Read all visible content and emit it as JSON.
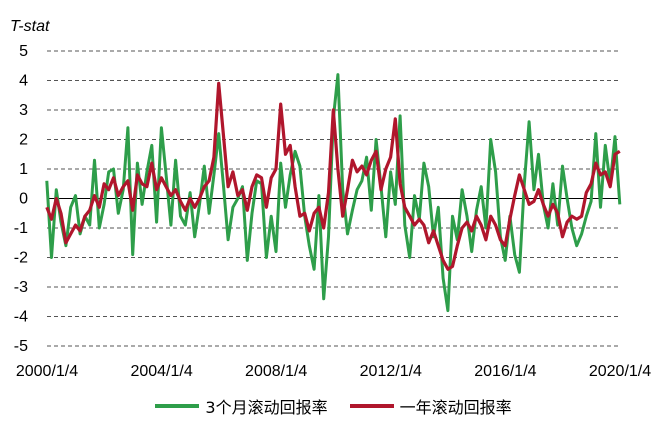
{
  "chart_data": {
    "type": "line",
    "ylabel": "T-stat",
    "ylim": [
      -5,
      5
    ],
    "yticks": [
      "5",
      "4",
      "3",
      "2",
      "1",
      "0",
      "-1",
      "-2",
      "-3",
      "-4",
      "-5"
    ],
    "xlim": [
      "2000-01-04",
      "2020-01-04"
    ],
    "xtick_labels": [
      "2000/1/4",
      "2004/1/4",
      "2008/1/4",
      "2012/1/4",
      "2016/1/4",
      "2020/1/4"
    ],
    "grid": "horizontal dashed",
    "legend_position": "bottom",
    "series": [
      {
        "name": "3个月滚动回报率",
        "color": "#2e9e4a",
        "x": [
          "2000-01",
          "2000-03",
          "2000-05",
          "2000-07",
          "2000-09",
          "2000-11",
          "2001-01",
          "2001-03",
          "2001-05",
          "2001-07",
          "2001-09",
          "2001-11",
          "2002-01",
          "2002-03",
          "2002-05",
          "2002-07",
          "2002-09",
          "2002-11",
          "2003-01",
          "2003-03",
          "2003-05",
          "2003-07",
          "2003-09",
          "2003-11",
          "2004-01",
          "2004-03",
          "2004-05",
          "2004-07",
          "2004-09",
          "2004-11",
          "2005-01",
          "2005-03",
          "2005-05",
          "2005-07",
          "2005-09",
          "2005-11",
          "2006-01",
          "2006-03",
          "2006-05",
          "2006-07",
          "2006-09",
          "2006-11",
          "2007-01",
          "2007-03",
          "2007-05",
          "2007-07",
          "2007-09",
          "2007-11",
          "2008-01",
          "2008-03",
          "2008-05",
          "2008-07",
          "2008-09",
          "2008-11",
          "2009-01",
          "2009-03",
          "2009-05",
          "2009-07",
          "2009-09",
          "2009-11",
          "2010-01",
          "2010-03",
          "2010-05",
          "2010-07",
          "2010-09",
          "2010-11",
          "2011-01",
          "2011-03",
          "2011-05",
          "2011-07",
          "2011-09",
          "2011-11",
          "2012-01",
          "2012-03",
          "2012-05",
          "2012-07",
          "2012-09",
          "2012-11",
          "2013-01",
          "2013-03",
          "2013-05",
          "2013-07",
          "2013-09",
          "2013-11",
          "2014-01",
          "2014-03",
          "2014-05",
          "2014-07",
          "2014-09",
          "2014-11",
          "2015-01",
          "2015-03",
          "2015-05",
          "2015-07",
          "2015-09",
          "2015-11",
          "2016-01",
          "2016-03",
          "2016-05",
          "2016-07",
          "2016-09",
          "2016-11",
          "2017-01",
          "2017-03",
          "2017-05",
          "2017-07",
          "2017-09",
          "2017-11",
          "2018-01",
          "2018-03",
          "2018-05",
          "2018-07",
          "2018-09",
          "2018-11",
          "2019-01",
          "2019-03",
          "2019-05",
          "2019-07",
          "2019-09",
          "2019-11",
          "2020-01"
        ],
        "values": [
          0.6,
          -2.0,
          0.3,
          -0.8,
          -1.6,
          -0.3,
          0.1,
          -1.2,
          -0.6,
          -0.9,
          1.3,
          -1.0,
          -0.2,
          0.9,
          1.0,
          -0.5,
          0.3,
          2.4,
          -1.9,
          1.2,
          -0.2,
          0.9,
          1.8,
          -0.8,
          2.4,
          0.8,
          -0.9,
          1.3,
          -0.6,
          -0.9,
          0.2,
          -1.3,
          -0.2,
          1.1,
          -0.5,
          0.8,
          2.2,
          0.5,
          -1.4,
          -0.3,
          0.0,
          0.4,
          -2.1,
          -0.5,
          0.6,
          0.5,
          -2.0,
          -0.6,
          -1.8,
          1.2,
          -0.3,
          0.8,
          1.6,
          1.1,
          -0.6,
          -1.6,
          -2.4,
          0.1,
          -3.4,
          -1.3,
          2.7,
          4.2,
          0.3,
          -1.2,
          -0.4,
          0.3,
          0.6,
          1.4,
          -0.4,
          2.0,
          0.4,
          -1.3,
          0.9,
          -0.2,
          2.8,
          -0.9,
          -2.0,
          0.1,
          -0.7,
          1.2,
          0.4,
          -1.3,
          -0.3,
          -2.7,
          -3.8,
          -0.6,
          -1.4,
          0.3,
          -0.6,
          -1.8,
          -0.4,
          0.4,
          -1.0,
          2.0,
          0.9,
          -1.3,
          -2.1,
          -0.6,
          -1.9,
          -2.5,
          0.5,
          2.6,
          0.3,
          1.5,
          -0.2,
          -1.0,
          0.5,
          -0.9,
          1.1,
          0.0,
          -1.0,
          -1.6,
          -1.2,
          -0.6,
          -0.1,
          2.2,
          -0.3,
          1.8,
          0.5,
          2.1,
          -0.2
        ]
      },
      {
        "name": "一年滚动回报率",
        "color": "#b0162c",
        "x": [
          "2000-01",
          "2000-03",
          "2000-05",
          "2000-07",
          "2000-09",
          "2000-11",
          "2001-01",
          "2001-03",
          "2001-05",
          "2001-07",
          "2001-09",
          "2001-11",
          "2002-01",
          "2002-03",
          "2002-05",
          "2002-07",
          "2002-09",
          "2002-11",
          "2003-01",
          "2003-03",
          "2003-05",
          "2003-07",
          "2003-09",
          "2003-11",
          "2004-01",
          "2004-03",
          "2004-05",
          "2004-07",
          "2004-09",
          "2004-11",
          "2005-01",
          "2005-03",
          "2005-05",
          "2005-07",
          "2005-09",
          "2005-11",
          "2006-01",
          "2006-03",
          "2006-05",
          "2006-07",
          "2006-09",
          "2006-11",
          "2007-01",
          "2007-03",
          "2007-05",
          "2007-07",
          "2007-09",
          "2007-11",
          "2008-01",
          "2008-03",
          "2008-05",
          "2008-07",
          "2008-09",
          "2008-11",
          "2009-01",
          "2009-03",
          "2009-05",
          "2009-07",
          "2009-09",
          "2009-11",
          "2010-01",
          "2010-03",
          "2010-05",
          "2010-07",
          "2010-09",
          "2010-11",
          "2011-01",
          "2011-03",
          "2011-05",
          "2011-07",
          "2011-09",
          "2011-11",
          "2012-01",
          "2012-03",
          "2012-05",
          "2012-07",
          "2012-09",
          "2012-11",
          "2013-01",
          "2013-03",
          "2013-05",
          "2013-07",
          "2013-09",
          "2013-11",
          "2014-01",
          "2014-03",
          "2014-05",
          "2014-07",
          "2014-09",
          "2014-11",
          "2015-01",
          "2015-03",
          "2015-05",
          "2015-07",
          "2015-09",
          "2015-11",
          "2016-01",
          "2016-03",
          "2016-05",
          "2016-07",
          "2016-09",
          "2016-11",
          "2017-01",
          "2017-03",
          "2017-05",
          "2017-07",
          "2017-09",
          "2017-11",
          "2018-01",
          "2018-03",
          "2018-05",
          "2018-07",
          "2018-09",
          "2018-11",
          "2019-01",
          "2019-03",
          "2019-05",
          "2019-07",
          "2019-09",
          "2019-11",
          "2020-01"
        ],
        "values": [
          -0.3,
          -0.7,
          0.0,
          -0.5,
          -1.5,
          -1.2,
          -0.9,
          -1.1,
          -0.6,
          -0.4,
          0.1,
          -0.3,
          0.5,
          0.3,
          0.7,
          0.1,
          0.4,
          0.6,
          -0.4,
          0.8,
          0.5,
          0.4,
          1.2,
          0.3,
          0.7,
          0.4,
          0.1,
          0.3,
          -0.1,
          -0.4,
          0.0,
          -0.3,
          0.0,
          0.4,
          0.6,
          1.4,
          3.9,
          2.2,
          0.4,
          0.9,
          0.1,
          0.3,
          -0.4,
          0.4,
          0.8,
          0.7,
          -0.3,
          0.7,
          1.0,
          3.2,
          1.5,
          1.8,
          0.4,
          -0.6,
          -0.5,
          -1.1,
          -0.5,
          -0.3,
          -1.0,
          0.2,
          3.0,
          1.0,
          -0.6,
          0.3,
          1.3,
          0.9,
          1.1,
          0.8,
          1.3,
          1.6,
          0.3,
          1.0,
          1.4,
          2.7,
          0.5,
          -0.3,
          -0.6,
          -0.9,
          -0.7,
          -0.9,
          -1.5,
          -1.1,
          -1.6,
          -2.1,
          -2.4,
          -2.3,
          -1.6,
          -1.0,
          -0.8,
          -1.1,
          -0.6,
          -0.9,
          -1.4,
          -0.6,
          -0.9,
          -1.4,
          -1.6,
          -0.7,
          0.1,
          0.8,
          0.3,
          -0.2,
          -0.1,
          0.3,
          -0.2,
          -0.6,
          -0.2,
          -0.5,
          -1.3,
          -0.8,
          -0.6,
          -0.7,
          -0.6,
          0.2,
          0.5,
          1.2,
          0.8,
          0.9,
          0.4,
          1.5,
          1.6
        ]
      }
    ]
  }
}
